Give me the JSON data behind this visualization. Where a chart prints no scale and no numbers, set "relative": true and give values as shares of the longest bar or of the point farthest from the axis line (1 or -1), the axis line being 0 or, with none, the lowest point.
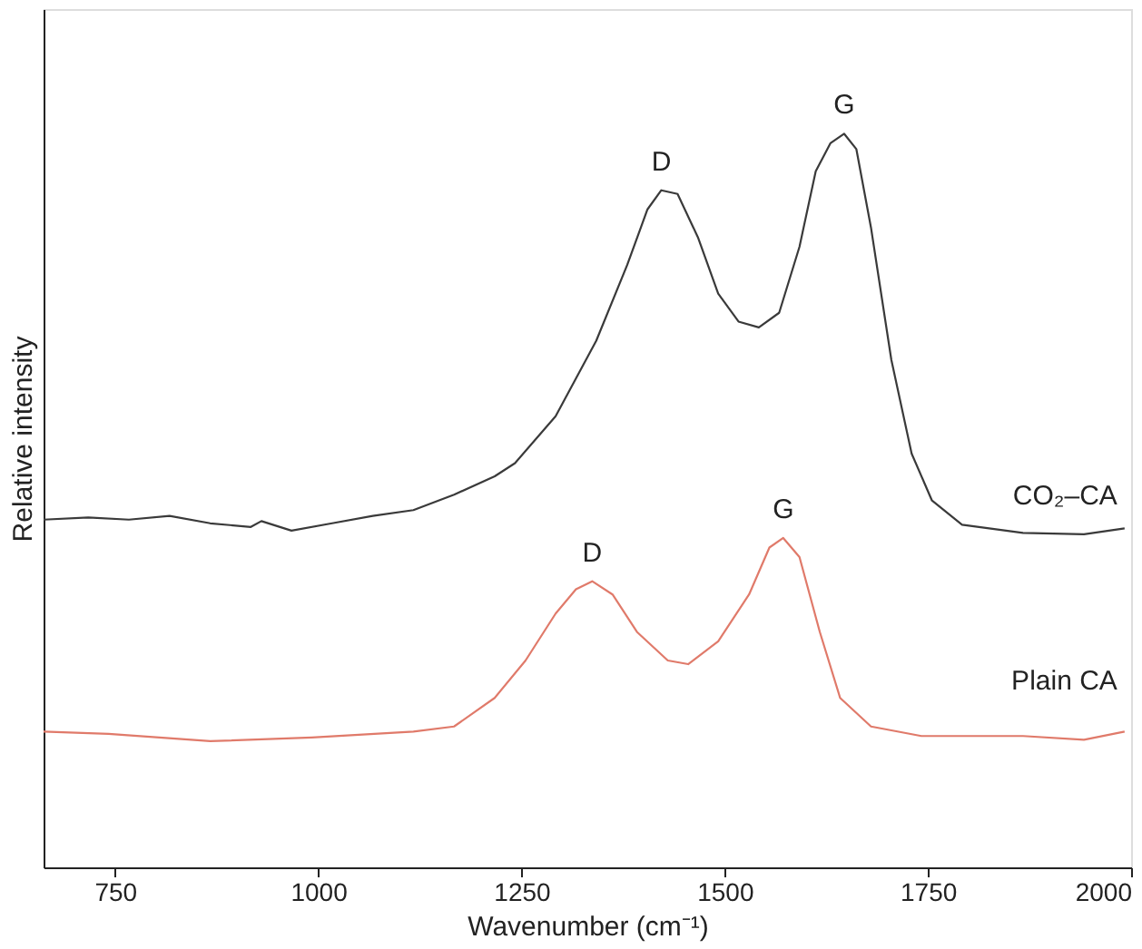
{
  "chart_data": {
    "type": "line",
    "relative": true,
    "xlabel": "Wavenumber (cm⁻¹)",
    "ylabel": "Relative intensity",
    "xlim": [
      662,
      2000
    ],
    "xticks": [
      750,
      1000,
      1250,
      1500,
      1750,
      2000
    ],
    "grid": false,
    "marker": "none",
    "line_style": "solid",
    "series": [
      {
        "name": "CO₂–CA",
        "color": "#3a3a3a",
        "x": [
          662,
          717,
          767,
          817,
          867,
          917,
          930,
          967,
          1017,
          1067,
          1117,
          1167,
          1217,
          1242,
          1292,
          1342,
          1380,
          1405,
          1422,
          1442,
          1467,
          1492,
          1517,
          1542,
          1567,
          1592,
          1612,
          1630,
          1647,
          1662,
          1680,
          1705,
          1730,
          1755,
          1792,
          1867,
          1942,
          1992
        ],
        "values": [
          0.474,
          0.477,
          0.474,
          0.479,
          0.469,
          0.464,
          0.472,
          0.459,
          0.469,
          0.479,
          0.487,
          0.508,
          0.533,
          0.551,
          0.615,
          0.718,
          0.821,
          0.897,
          0.923,
          0.918,
          0.859,
          0.782,
          0.744,
          0.736,
          0.756,
          0.846,
          0.949,
          0.987,
          1.0,
          0.979,
          0.872,
          0.692,
          0.564,
          0.5,
          0.467,
          0.456,
          0.454,
          0.462
        ]
      },
      {
        "name": "Plain CA",
        "color": "#e07a6a",
        "x": [
          662,
          742,
          867,
          992,
          1117,
          1167,
          1217,
          1255,
          1292,
          1317,
          1337,
          1362,
          1392,
          1430,
          1455,
          1492,
          1530,
          1555,
          1572,
          1592,
          1617,
          1642,
          1680,
          1742,
          1867,
          1942,
          1992
        ],
        "values": [
          0.185,
          0.182,
          0.172,
          0.177,
          0.185,
          0.192,
          0.231,
          0.282,
          0.346,
          0.379,
          0.39,
          0.372,
          0.321,
          0.282,
          0.277,
          0.308,
          0.372,
          0.436,
          0.449,
          0.423,
          0.321,
          0.231,
          0.192,
          0.179,
          0.179,
          0.174,
          0.185
        ]
      }
    ],
    "annotations": [
      "D",
      "G",
      "D",
      "G"
    ]
  }
}
